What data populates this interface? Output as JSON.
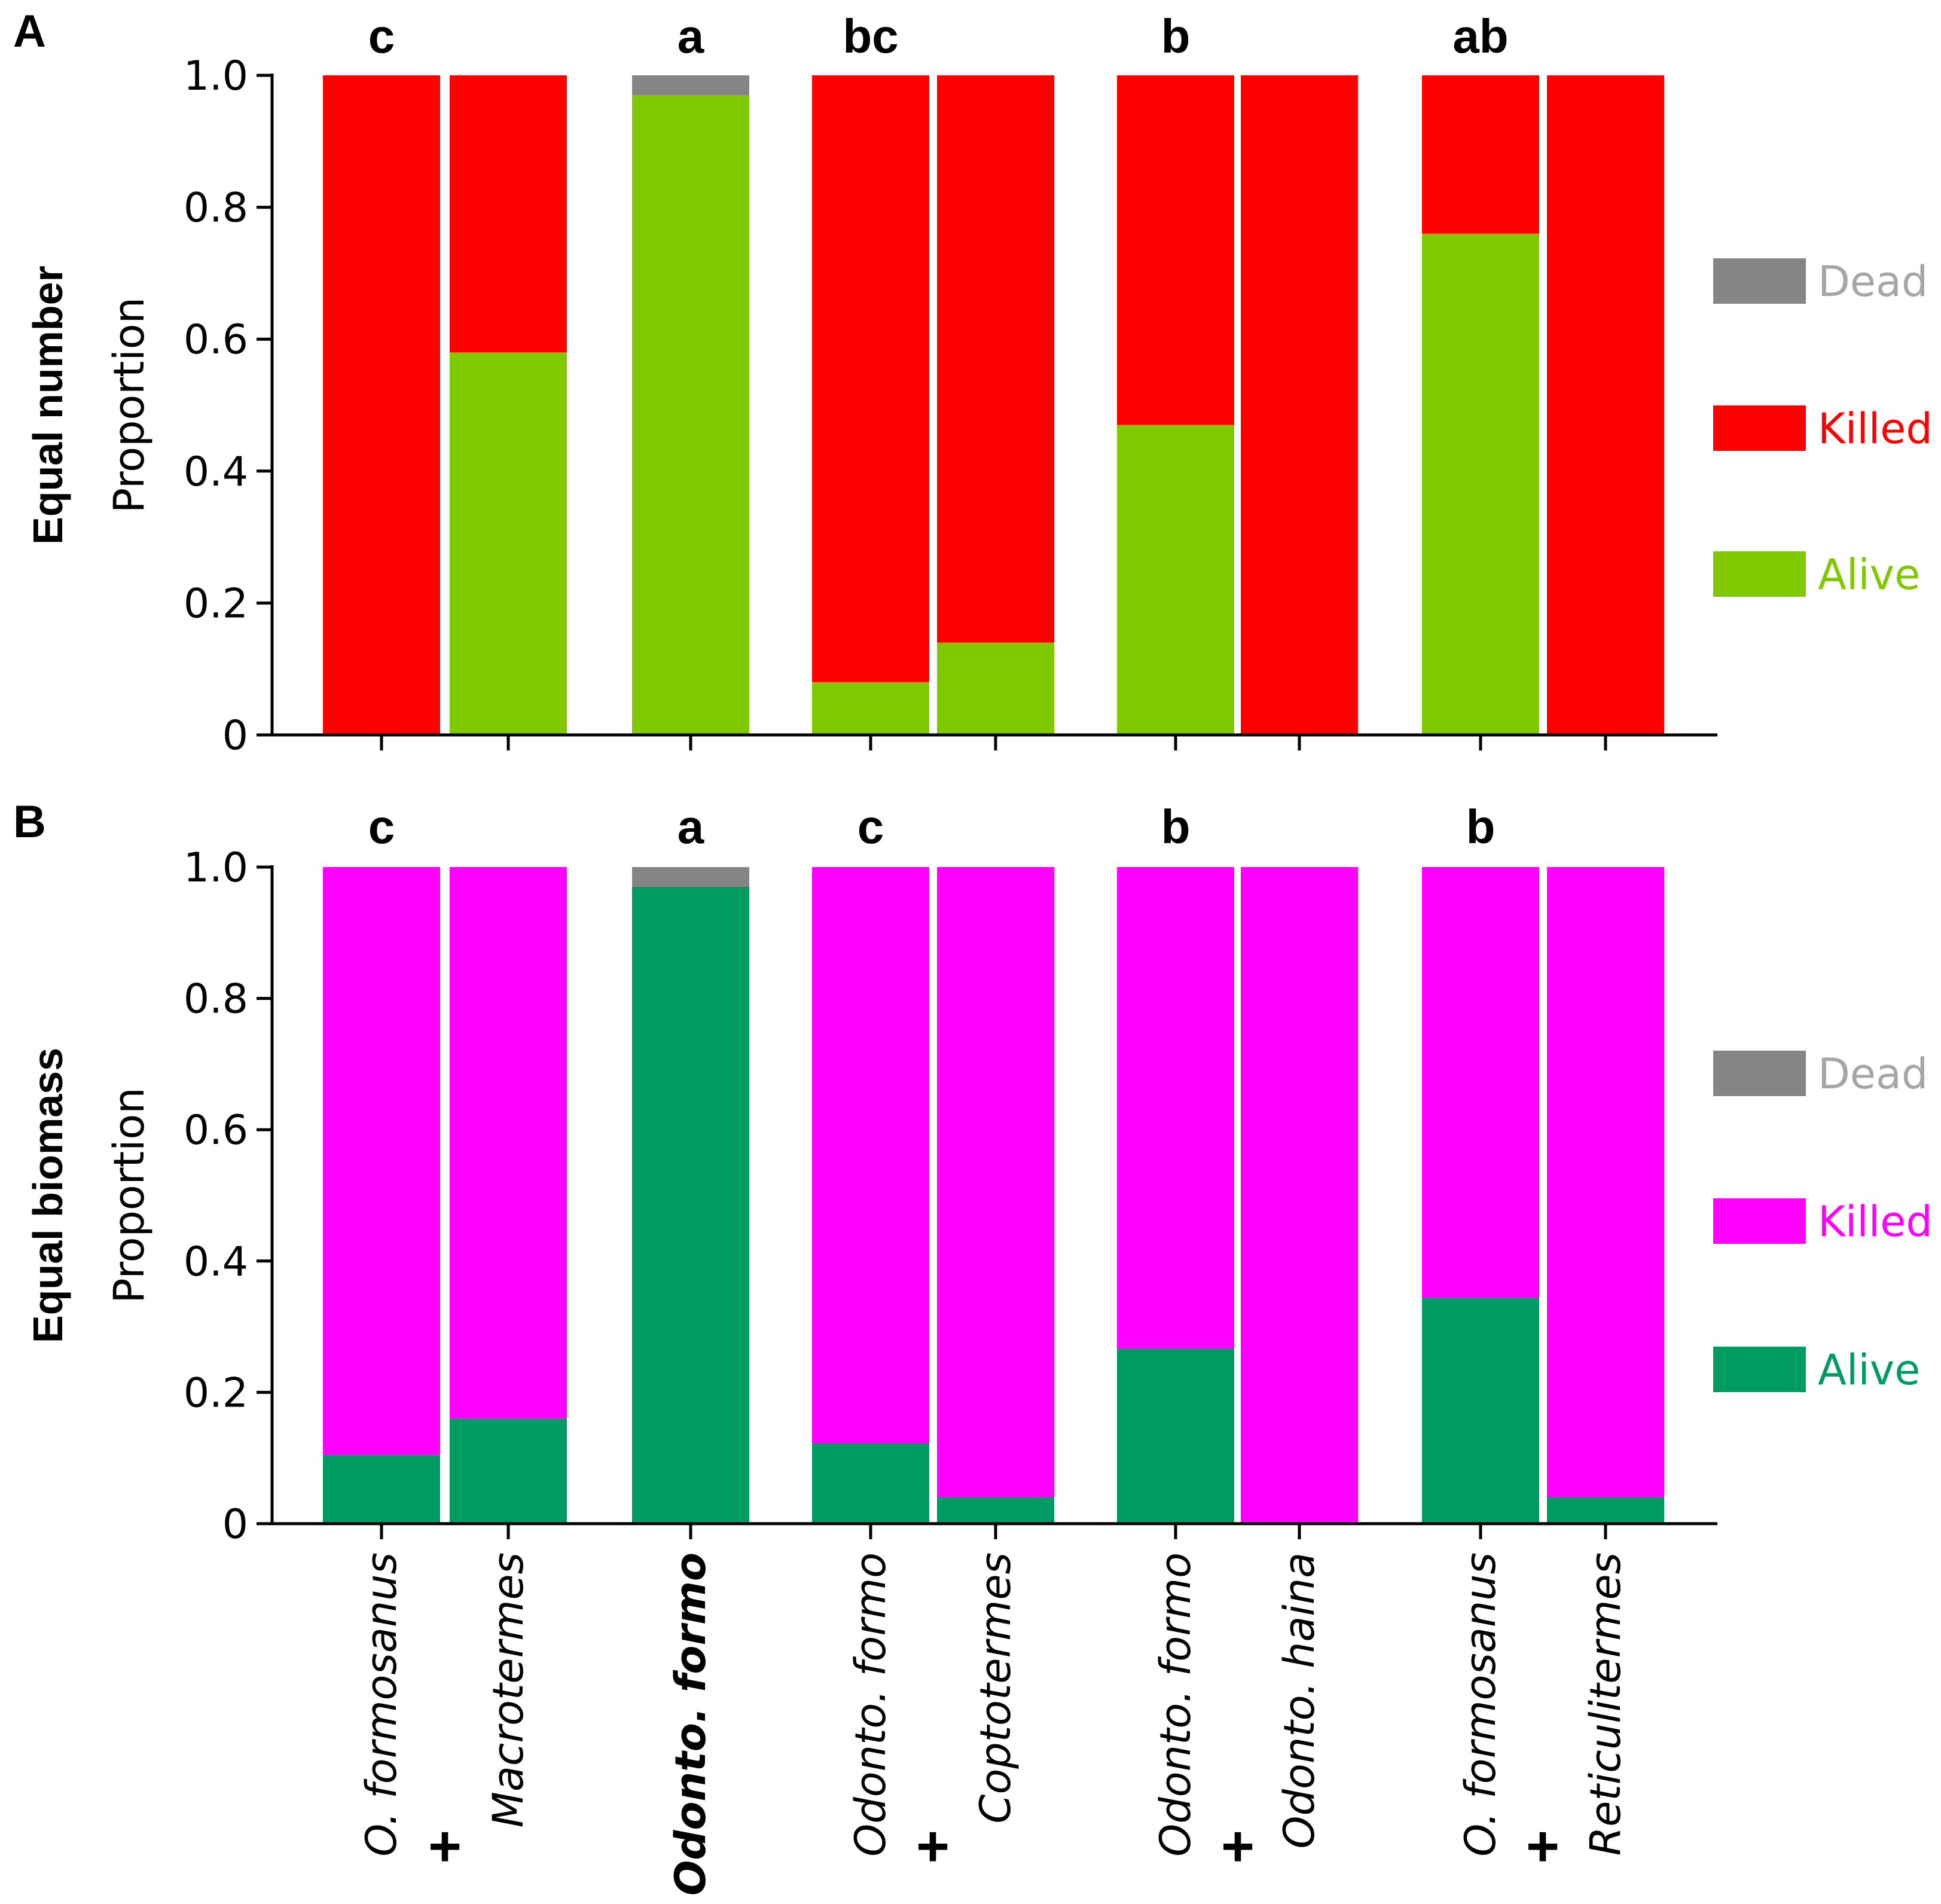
{
  "chart_data": [
    {
      "type": "bar",
      "stacked": true,
      "panel": "A",
      "row_label": "Equal number",
      "ylabel": "Proportion",
      "ylim": [
        0,
        1
      ],
      "yticks": [
        "0",
        "0.2",
        "0.4",
        "0.6",
        "0.8",
        "1.0"
      ],
      "categories": [
        "O. formosanus",
        "Macrotermes",
        "Odonto. formo",
        "Odonto. formo",
        "Coptotermes",
        "Odonto. formo",
        "Odonto. haina",
        "O. formosanus",
        "Reticulitermes"
      ],
      "series": [
        {
          "name": "Alive",
          "color": "#80c800",
          "values": [
            0,
            0.58,
            0.97,
            0.08,
            0.14,
            0.47,
            0,
            0.76,
            0
          ]
        },
        {
          "name": "Killed",
          "color": "#ff0000",
          "values": [
            1.0,
            0.42,
            0,
            0.92,
            0.86,
            0.53,
            1.0,
            0.24,
            1.0
          ]
        },
        {
          "name": "Dead",
          "color": "#858585",
          "values": [
            0,
            0,
            0.03,
            0,
            0,
            0,
            0,
            0,
            0
          ]
        }
      ],
      "legend": [
        {
          "label": "Dead",
          "swatch": "#858585",
          "text_color": "#a6a6a6"
        },
        {
          "label": "Killed",
          "swatch": "#ff0000",
          "text_color": "#ff0000"
        },
        {
          "label": "Alive",
          "swatch": "#80c800",
          "text_color": "#80c800"
        }
      ],
      "group_letters": [
        "c",
        "a",
        "bc",
        "b",
        "ab"
      ]
    },
    {
      "type": "bar",
      "stacked": true,
      "panel": "B",
      "row_label": "Equal biomass",
      "ylabel": "Proportion",
      "ylim": [
        0,
        1
      ],
      "yticks": [
        "0",
        "0.2",
        "0.4",
        "0.6",
        "0.8",
        "1.0"
      ],
      "categories": [
        "O. formosanus",
        "Macrotermes",
        "Odonto. formo",
        "Odonto. formo",
        "Coptotermes",
        "Odonto. formo",
        "Odonto. haina",
        "O. formosanus",
        "Reticulitermes"
      ],
      "series": [
        {
          "name": "Alive",
          "color": "#009a63",
          "values": [
            0.105,
            0.16,
            0.97,
            0.122,
            0.04,
            0.267,
            0,
            0.344,
            0.04
          ]
        },
        {
          "name": "Killed",
          "color": "#ff00ff",
          "values": [
            0.895,
            0.84,
            0,
            0.878,
            0.96,
            0.733,
            1.0,
            0.656,
            0.96
          ]
        },
        {
          "name": "Dead",
          "color": "#858585",
          "values": [
            0,
            0,
            0.03,
            0,
            0,
            0,
            0,
            0,
            0
          ]
        }
      ],
      "legend": [
        {
          "label": "Dead",
          "swatch": "#858585",
          "text_color": "#a6a6a6"
        },
        {
          "label": "Killed",
          "swatch": "#ff00ff",
          "text_color": "#ff00ff"
        },
        {
          "label": "Alive",
          "swatch": "#009a63",
          "text_color": "#009a63"
        }
      ],
      "group_letters": [
        "c",
        "a",
        "c",
        "b",
        "b"
      ]
    }
  ],
  "x_axis": {
    "categories": [
      {
        "label": "O. formosanus",
        "bold": false
      },
      {
        "label": "Macrotermes",
        "bold": false
      },
      {
        "label": "Odonto. formo",
        "bold": true
      },
      {
        "label": "Odonto. formo",
        "bold": false
      },
      {
        "label": "Coptotermes",
        "bold": false
      },
      {
        "label": "Odonto. formo",
        "bold": false
      },
      {
        "label": "Odonto. haina",
        "bold": false
      },
      {
        "label": "O. formosanus",
        "bold": false
      },
      {
        "label": "Reticulitermes",
        "bold": false
      }
    ],
    "plus_sign": "+"
  }
}
